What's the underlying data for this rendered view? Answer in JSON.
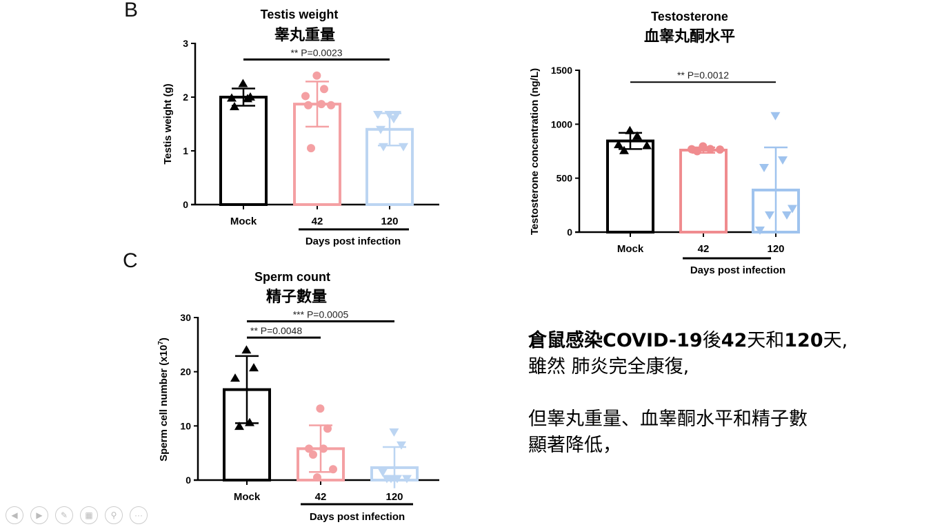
{
  "panels": {
    "b": "B",
    "c": "C"
  },
  "chart_data": [
    {
      "id": "testis",
      "type": "bar",
      "title": "Testis weight",
      "title_zh": "睾丸重量",
      "ylabel": "Testis weight (g)",
      "xlabel": "Days post infection",
      "ylim": [
        0,
        3
      ],
      "yticks": [
        0,
        1,
        2,
        3
      ],
      "categories": [
        "Mock",
        "42",
        "120"
      ],
      "series": [
        {
          "name": "Mock",
          "color": "#000000",
          "marker": "triangle-up",
          "mean": 2.0,
          "sd": 0.16,
          "points": [
            2.25,
            2.0,
            1.98,
            1.97,
            1.82
          ]
        },
        {
          "name": "42",
          "color": "#f4a0a3",
          "marker": "circle",
          "mean": 1.87,
          "sd": 0.42,
          "points": [
            2.4,
            2.15,
            2.02,
            1.87,
            1.85,
            1.85,
            1.05
          ]
        },
        {
          "name": "120",
          "color": "#bcd5f2",
          "marker": "triangle-down",
          "mean": 1.4,
          "sd": 0.3,
          "points": [
            1.68,
            1.68,
            1.68,
            1.6,
            1.4,
            1.08,
            1.08
          ]
        }
      ],
      "significance": [
        {
          "from": "Mock",
          "to": "120",
          "label": "** P=0.0023",
          "y": 2.7
        }
      ]
    },
    {
      "id": "testosterone",
      "type": "bar",
      "title": "Testosterone",
      "title_zh": "血睾丸酮水平",
      "ylabel": "Testosterone concentration (ng/L)",
      "xlabel": "Days post infection",
      "ylim": [
        0,
        1500
      ],
      "yticks": [
        0,
        500,
        1000,
        1500
      ],
      "categories": [
        "Mock",
        "42",
        "120"
      ],
      "series": [
        {
          "name": "Mock",
          "color": "#000000",
          "marker": "triangle-up",
          "mean": 845,
          "sd": 75,
          "points": [
            940,
            890,
            810,
            800,
            755
          ]
        },
        {
          "name": "42",
          "color": "#f08c8f",
          "marker": "circle",
          "mean": 760,
          "sd": 25,
          "points": [
            795,
            770,
            768,
            765,
            750
          ]
        },
        {
          "name": "120",
          "color": "#9fc3ee",
          "marker": "triangle-down",
          "mean": 390,
          "sd": 395,
          "points": [
            1080,
            670,
            600,
            220,
            160,
            160,
            20
          ]
        }
      ],
      "significance": [
        {
          "from": "Mock",
          "to": "120",
          "label": "** P=0.0012",
          "y": 1390
        }
      ]
    },
    {
      "id": "sperm",
      "type": "bar",
      "title": "Sperm count",
      "title_zh": "精子數量",
      "ylabel": "Sperm cell number (x10",
      "ylabel_sup": "7",
      "ylabel_end": ")",
      "xlabel": "Days post infection",
      "ylim": [
        0,
        30
      ],
      "yticks": [
        0,
        10,
        20,
        30
      ],
      "categories": [
        "Mock",
        "42",
        "120"
      ],
      "series": [
        {
          "name": "Mock",
          "color": "#000000",
          "marker": "triangle-up",
          "mean": 16.7,
          "sd": 6.2,
          "points": [
            24,
            20.7,
            18.8,
            10.6,
            9.9
          ]
        },
        {
          "name": "42",
          "color": "#f4a0a3",
          "marker": "circle",
          "mean": 5.8,
          "sd": 4.3,
          "points": [
            13.2,
            9.5,
            5.8,
            5.8,
            4.7,
            2,
            0.5
          ]
        },
        {
          "name": "120",
          "color": "#bcd5f2",
          "marker": "triangle-down",
          "mean": 2.3,
          "sd": 3.8,
          "points": [
            8.9,
            6.5,
            1.5,
            0.3,
            0.3,
            0.3,
            0.3
          ]
        }
      ],
      "significance": [
        {
          "from": "Mock",
          "to": "120",
          "label": "*** P=0.0005",
          "y": 29.3
        },
        {
          "from": "Mock",
          "to": "42",
          "label": "** P=0.0048",
          "y": 26.3
        }
      ]
    }
  ],
  "note": {
    "line1_a": "倉鼠感染",
    "line1_b": "COVID-19",
    "line1_c": "後",
    "line1_d": "42",
    "line1_e": "天和",
    "line1_f": "120",
    "line1_g": "天,",
    "line2": "雖然 肺炎完全康復,",
    "line3": "但睾丸重量、血睾酮水平和精子數",
    "line4": "顯著降低，"
  },
  "toolbar": {
    "icons": [
      "previous-icon",
      "next-icon",
      "pen-icon",
      "slides-icon",
      "zoom-icon",
      "more-icon"
    ]
  }
}
